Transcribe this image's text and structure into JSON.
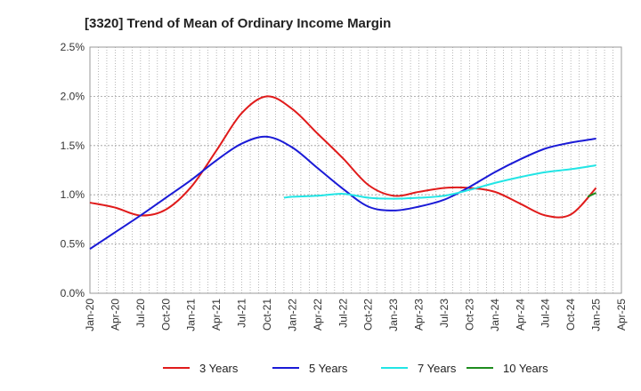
{
  "chart_data": {
    "type": "line",
    "title": "[3320]  Trend of Mean of Ordinary Income Margin",
    "xlabel": "",
    "ylabel": "",
    "x_ticks": [
      "Jan-20",
      "Apr-20",
      "Jul-20",
      "Oct-20",
      "Jan-21",
      "Apr-21",
      "Jul-21",
      "Oct-21",
      "Jan-22",
      "Apr-22",
      "Jul-22",
      "Oct-22",
      "Jan-23",
      "Apr-23",
      "Jul-23",
      "Oct-23",
      "Jan-24",
      "Apr-24",
      "Jul-24",
      "Oct-24",
      "Jan-25",
      "Apr-25"
    ],
    "y_ticks": [
      "0.0%",
      "0.5%",
      "1.0%",
      "1.5%",
      "2.0%",
      "2.5%"
    ],
    "ylim": [
      0,
      2.5
    ],
    "grid": true,
    "legend_position": "bottom",
    "series": [
      {
        "name": "3 Years",
        "color": "#e01b1b",
        "points": [
          [
            "Jan-20",
            0.92
          ],
          [
            "Apr-20",
            0.87
          ],
          [
            "Jul-20",
            0.79
          ],
          [
            "Oct-20",
            0.85
          ],
          [
            "Jan-21",
            1.08
          ],
          [
            "Apr-21",
            1.45
          ],
          [
            "Jul-21",
            1.83
          ],
          [
            "Oct-21",
            2.0
          ],
          [
            "Jan-22",
            1.87
          ],
          [
            "Apr-22",
            1.62
          ],
          [
            "Jul-22",
            1.37
          ],
          [
            "Oct-22",
            1.1
          ],
          [
            "Jan-23",
            0.99
          ],
          [
            "Apr-23",
            1.03
          ],
          [
            "Jul-23",
            1.07
          ],
          [
            "Oct-23",
            1.07
          ],
          [
            "Jan-24",
            1.03
          ],
          [
            "Apr-24",
            0.91
          ],
          [
            "Jul-24",
            0.79
          ],
          [
            "Oct-24",
            0.8
          ],
          [
            "Jan-25",
            1.07
          ]
        ]
      },
      {
        "name": "5 Years",
        "color": "#1a1ad6",
        "points": [
          [
            "Jan-20",
            0.45
          ],
          [
            "Apr-20",
            0.62
          ],
          [
            "Jul-20",
            0.79
          ],
          [
            "Oct-20",
            0.97
          ],
          [
            "Jan-21",
            1.15
          ],
          [
            "Apr-21",
            1.35
          ],
          [
            "Jul-21",
            1.52
          ],
          [
            "Oct-21",
            1.59
          ],
          [
            "Jan-22",
            1.48
          ],
          [
            "Apr-22",
            1.27
          ],
          [
            "Jul-22",
            1.06
          ],
          [
            "Oct-22",
            0.88
          ],
          [
            "Jan-23",
            0.84
          ],
          [
            "Apr-23",
            0.88
          ],
          [
            "Jul-23",
            0.95
          ],
          [
            "Oct-23",
            1.08
          ],
          [
            "Jan-24",
            1.23
          ],
          [
            "Apr-24",
            1.36
          ],
          [
            "Jul-24",
            1.47
          ],
          [
            "Oct-24",
            1.53
          ],
          [
            "Jan-25",
            1.57
          ]
        ]
      },
      {
        "name": "7 Years",
        "color": "#22e5e5",
        "points": [
          [
            "Dec-21",
            0.97
          ],
          [
            "Jan-22",
            0.98
          ],
          [
            "Apr-22",
            0.99
          ],
          [
            "Jul-22",
            1.01
          ],
          [
            "Oct-22",
            0.97
          ],
          [
            "Jan-23",
            0.96
          ],
          [
            "Apr-23",
            0.97
          ],
          [
            "Jul-23",
            0.99
          ],
          [
            "Oct-23",
            1.05
          ],
          [
            "Jan-24",
            1.12
          ],
          [
            "Apr-24",
            1.18
          ],
          [
            "Jul-24",
            1.23
          ],
          [
            "Oct-24",
            1.26
          ],
          [
            "Jan-25",
            1.3
          ]
        ]
      },
      {
        "name": "10 Years",
        "color": "#1e8c1e",
        "points": [
          [
            "Dec-24",
            0.98
          ],
          [
            "Jan-25",
            1.02
          ]
        ]
      }
    ]
  }
}
